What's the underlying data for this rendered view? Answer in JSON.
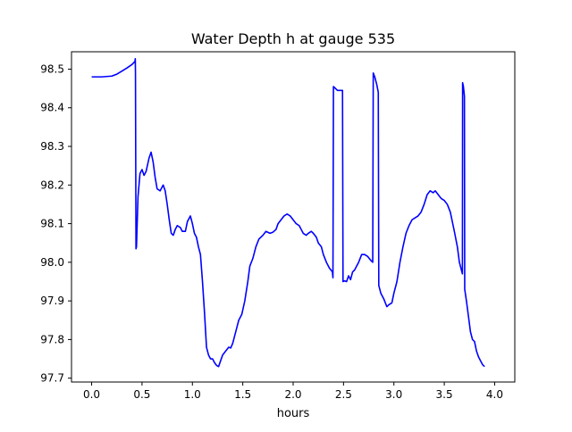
{
  "chart_data": {
    "type": "line",
    "title": "Water Depth h at gauge 535",
    "xlabel": "hours",
    "ylabel": "",
    "xlim": [
      -0.2,
      4.2
    ],
    "ylim": [
      97.69,
      98.545
    ],
    "xticks": [
      0.0,
      0.5,
      1.0,
      1.5,
      2.0,
      2.5,
      3.0,
      3.5,
      4.0
    ],
    "xtick_labels": [
      "0.0",
      "0.5",
      "1.0",
      "1.5",
      "2.0",
      "2.5",
      "3.0",
      "3.5",
      "4.0"
    ],
    "yticks": [
      97.7,
      97.8,
      97.9,
      98.0,
      98.1,
      98.2,
      98.3,
      98.4,
      98.5
    ],
    "ytick_labels": [
      "97.7",
      "97.8",
      "97.9",
      "98.0",
      "98.1",
      "98.2",
      "98.3",
      "98.4",
      "98.5"
    ],
    "grid": false,
    "legend": "none",
    "series": [
      {
        "name": "",
        "color": "#0000ff",
        "points": [
          [
            0.0,
            98.48
          ],
          [
            0.1,
            98.48
          ],
          [
            0.2,
            98.482
          ],
          [
            0.25,
            98.487
          ],
          [
            0.3,
            98.495
          ],
          [
            0.35,
            98.503
          ],
          [
            0.4,
            98.512
          ],
          [
            0.43,
            98.52
          ],
          [
            0.433,
            98.527
          ],
          [
            0.435,
            98.49
          ],
          [
            0.44,
            98.035
          ],
          [
            0.445,
            98.04
          ],
          [
            0.46,
            98.17
          ],
          [
            0.48,
            98.23
          ],
          [
            0.5,
            98.24
          ],
          [
            0.52,
            98.225
          ],
          [
            0.54,
            98.235
          ],
          [
            0.57,
            98.27
          ],
          [
            0.59,
            98.285
          ],
          [
            0.61,
            98.26
          ],
          [
            0.63,
            98.22
          ],
          [
            0.65,
            98.19
          ],
          [
            0.68,
            98.185
          ],
          [
            0.71,
            98.2
          ],
          [
            0.73,
            98.185
          ],
          [
            0.75,
            98.15
          ],
          [
            0.77,
            98.11
          ],
          [
            0.79,
            98.075
          ],
          [
            0.81,
            98.07
          ],
          [
            0.83,
            98.085
          ],
          [
            0.85,
            98.095
          ],
          [
            0.88,
            98.09
          ],
          [
            0.9,
            98.08
          ],
          [
            0.93,
            98.08
          ],
          [
            0.95,
            98.105
          ],
          [
            0.98,
            98.12
          ],
          [
            1.0,
            98.1
          ],
          [
            1.02,
            98.075
          ],
          [
            1.04,
            98.065
          ],
          [
            1.06,
            98.04
          ],
          [
            1.08,
            98.02
          ],
          [
            1.1,
            97.95
          ],
          [
            1.12,
            97.87
          ],
          [
            1.14,
            97.78
          ],
          [
            1.16,
            97.76
          ],
          [
            1.18,
            97.75
          ],
          [
            1.2,
            97.75
          ],
          [
            1.22,
            97.74
          ],
          [
            1.24,
            97.733
          ],
          [
            1.26,
            97.73
          ],
          [
            1.28,
            97.745
          ],
          [
            1.3,
            97.76
          ],
          [
            1.33,
            97.77
          ],
          [
            1.36,
            97.78
          ],
          [
            1.38,
            97.778
          ],
          [
            1.4,
            97.79
          ],
          [
            1.42,
            97.81
          ],
          [
            1.44,
            97.83
          ],
          [
            1.46,
            97.85
          ],
          [
            1.49,
            97.865
          ],
          [
            1.52,
            97.9
          ],
          [
            1.55,
            97.95
          ],
          [
            1.57,
            97.99
          ],
          [
            1.6,
            98.01
          ],
          [
            1.63,
            98.04
          ],
          [
            1.66,
            98.06
          ],
          [
            1.7,
            98.07
          ],
          [
            1.73,
            98.08
          ],
          [
            1.77,
            98.075
          ],
          [
            1.8,
            98.078
          ],
          [
            1.83,
            98.085
          ],
          [
            1.85,
            98.1
          ],
          [
            1.88,
            98.11
          ],
          [
            1.91,
            98.12
          ],
          [
            1.94,
            98.125
          ],
          [
            1.97,
            98.12
          ],
          [
            2.0,
            98.11
          ],
          [
            2.03,
            98.1
          ],
          [
            2.06,
            98.095
          ],
          [
            2.08,
            98.085
          ],
          [
            2.1,
            98.075
          ],
          [
            2.13,
            98.07
          ],
          [
            2.15,
            98.075
          ],
          [
            2.18,
            98.08
          ],
          [
            2.2,
            98.075
          ],
          [
            2.23,
            98.065
          ],
          [
            2.25,
            98.05
          ],
          [
            2.28,
            98.04
          ],
          [
            2.3,
            98.02
          ],
          [
            2.33,
            98.0
          ],
          [
            2.36,
            97.985
          ],
          [
            2.39,
            97.975
          ],
          [
            2.395,
            97.96
          ],
          [
            2.4,
            98.455
          ],
          [
            2.42,
            98.45
          ],
          [
            2.44,
            98.445
          ],
          [
            2.47,
            98.445
          ],
          [
            2.49,
            98.445
          ],
          [
            2.495,
            97.95
          ],
          [
            2.51,
            97.952
          ],
          [
            2.53,
            97.95
          ],
          [
            2.55,
            97.965
          ],
          [
            2.57,
            97.955
          ],
          [
            2.59,
            97.975
          ],
          [
            2.61,
            97.98
          ],
          [
            2.63,
            97.99
          ],
          [
            2.65,
            98.0
          ],
          [
            2.68,
            98.02
          ],
          [
            2.71,
            98.02
          ],
          [
            2.74,
            98.015
          ],
          [
            2.77,
            98.005
          ],
          [
            2.79,
            98.0
          ],
          [
            2.795,
            98.49
          ],
          [
            2.81,
            98.48
          ],
          [
            2.83,
            98.46
          ],
          [
            2.845,
            98.44
          ],
          [
            2.85,
            97.94
          ],
          [
            2.87,
            97.92
          ],
          [
            2.9,
            97.905
          ],
          [
            2.93,
            97.885
          ],
          [
            2.95,
            97.89
          ],
          [
            2.98,
            97.895
          ],
          [
            3.0,
            97.92
          ],
          [
            3.03,
            97.95
          ],
          [
            3.06,
            98.0
          ],
          [
            3.09,
            98.04
          ],
          [
            3.12,
            98.075
          ],
          [
            3.15,
            98.095
          ],
          [
            3.18,
            98.11
          ],
          [
            3.21,
            98.115
          ],
          [
            3.24,
            98.12
          ],
          [
            3.27,
            98.13
          ],
          [
            3.3,
            98.15
          ],
          [
            3.33,
            98.175
          ],
          [
            3.36,
            98.185
          ],
          [
            3.39,
            98.18
          ],
          [
            3.41,
            98.185
          ],
          [
            3.44,
            98.175
          ],
          [
            3.47,
            98.165
          ],
          [
            3.5,
            98.16
          ],
          [
            3.53,
            98.15
          ],
          [
            3.56,
            98.13
          ],
          [
            3.6,
            98.08
          ],
          [
            3.63,
            98.04
          ],
          [
            3.65,
            98.0
          ],
          [
            3.67,
            97.98
          ],
          [
            3.68,
            97.97
          ],
          [
            3.682,
            98.465
          ],
          [
            3.69,
            98.455
          ],
          [
            3.7,
            98.43
          ],
          [
            3.703,
            97.93
          ],
          [
            3.72,
            97.9
          ],
          [
            3.74,
            97.86
          ],
          [
            3.76,
            97.82
          ],
          [
            3.78,
            97.8
          ],
          [
            3.8,
            97.795
          ],
          [
            3.82,
            97.77
          ],
          [
            3.84,
            97.755
          ],
          [
            3.86,
            97.745
          ],
          [
            3.88,
            97.735
          ],
          [
            3.9,
            97.73
          ]
        ]
      }
    ]
  }
}
